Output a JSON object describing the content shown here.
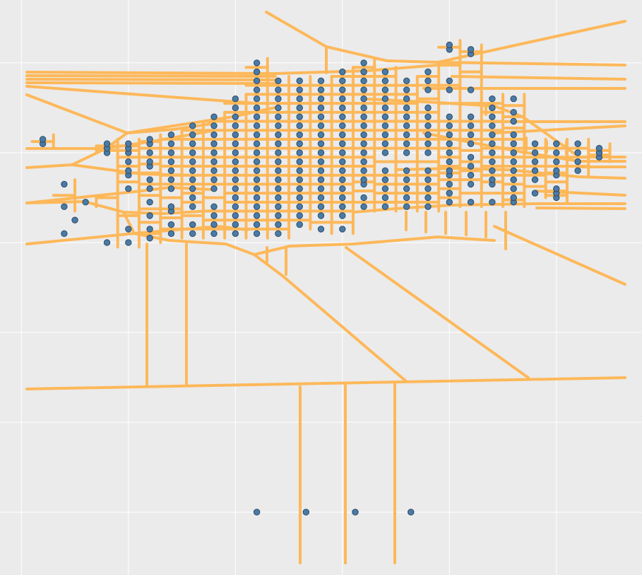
{
  "chart_data": {
    "type": "scatter",
    "title": "",
    "xlabel": "",
    "ylabel": "",
    "xlim": [
      -1,
      29
    ],
    "ylim": [
      -2,
      62
    ],
    "grid": true,
    "legend": "none",
    "colors": {
      "background": "#ebebeb",
      "grid": "#ffffff",
      "edges": "#fdb85a",
      "points": "#4a7ba6"
    },
    "x_gridlines": [
      0,
      5,
      10,
      15,
      20,
      25
    ],
    "y_gridlines": [
      5,
      15,
      25,
      35,
      45,
      55
    ],
    "point_columns": [
      {
        "x": 1,
        "y": [
          46,
          46.5
        ]
      },
      {
        "x": 2,
        "y": [
          39,
          41.5
        ]
      },
      {
        "x": 3,
        "y": [
          39.5
        ]
      },
      {
        "x": 4,
        "y": [
          35,
          45,
          45.5,
          46
        ]
      },
      {
        "x": 5,
        "y": [
          35,
          41,
          42.5,
          43,
          44,
          45,
          45.5,
          46
        ]
      },
      {
        "x": 6,
        "y": [
          35.5,
          36.5,
          38,
          39.5,
          41,
          42,
          43.5,
          44,
          45,
          46,
          46.5
        ]
      },
      {
        "x": 7,
        "y": [
          36,
          37,
          38.5,
          39,
          41,
          42,
          43,
          44,
          45,
          46,
          47
        ]
      },
      {
        "x": 8,
        "y": [
          36,
          37,
          39,
          40,
          41,
          42,
          43,
          44,
          45,
          46,
          47,
          48
        ]
      },
      {
        "x": 9,
        "y": [
          36,
          37,
          38,
          39,
          41,
          42,
          43,
          44,
          45,
          46,
          47,
          48,
          49
        ]
      },
      {
        "x": 10,
        "y": [
          36,
          37,
          38,
          39,
          40,
          41,
          42,
          43,
          44,
          45,
          46,
          47,
          48,
          49,
          50,
          51
        ]
      },
      {
        "x": 11,
        "y": [
          36,
          37,
          38,
          39,
          40,
          41,
          42,
          43,
          44,
          45,
          46,
          47,
          48,
          49,
          50,
          51,
          52,
          53,
          54,
          55
        ]
      },
      {
        "x": 12,
        "y": [
          36,
          37,
          38,
          39,
          40,
          41,
          42,
          43,
          44,
          45,
          46,
          47,
          48,
          49,
          50,
          51,
          52,
          53
        ]
      },
      {
        "x": 13,
        "y": [
          37,
          38,
          39,
          40,
          41,
          42,
          43,
          44,
          45,
          46,
          47,
          48,
          49,
          50,
          51,
          52,
          53
        ]
      },
      {
        "x": 14,
        "y": [
          36.5,
          38,
          39,
          40,
          41,
          42,
          43,
          44,
          45,
          46,
          47,
          48,
          49,
          50,
          51,
          52,
          53
        ]
      },
      {
        "x": 15,
        "y": [
          36.5,
          38,
          39,
          40,
          41,
          42,
          43,
          44,
          45,
          46,
          47,
          48,
          49,
          50,
          51,
          52,
          53,
          54
        ]
      },
      {
        "x": 16,
        "y": [
          39,
          40,
          41.5,
          42,
          43,
          44,
          45,
          46,
          47,
          48,
          49,
          50,
          51,
          52,
          53,
          54,
          55
        ]
      },
      {
        "x": 17,
        "y": [
          39,
          40,
          41,
          42,
          43,
          45,
          46,
          47,
          48,
          49,
          50,
          51,
          52,
          53,
          54
        ]
      },
      {
        "x": 18,
        "y": [
          39,
          40,
          41,
          42,
          43,
          45,
          46,
          47,
          48,
          49,
          50,
          51,
          52,
          53
        ]
      },
      {
        "x": 19,
        "y": [
          39,
          40,
          41,
          42,
          43,
          45,
          46,
          47,
          48,
          49,
          50,
          52,
          53,
          54
        ]
      },
      {
        "x": 20,
        "y": [
          39.5,
          40.5,
          41.5,
          42.5,
          43,
          44,
          45,
          46,
          47,
          48,
          49,
          52,
          53,
          56.5,
          57
        ]
      },
      {
        "x": 21,
        "y": [
          39.5,
          41.5,
          42.5,
          43.5,
          44.5,
          46,
          47,
          48,
          49,
          52,
          56,
          56.5
        ]
      },
      {
        "x": 22,
        "y": [
          39.5,
          41.5,
          42,
          43,
          44,
          45,
          46,
          47,
          48,
          49,
          50,
          51
        ]
      },
      {
        "x": 23,
        "y": [
          39.5,
          40,
          41,
          42,
          43,
          44,
          45,
          46,
          47,
          48.5,
          49.5,
          51
        ]
      },
      {
        "x": 24,
        "y": [
          40.5,
          42,
          43,
          44,
          45,
          46
        ]
      },
      {
        "x": 25,
        "y": [
          40,
          40.5,
          41,
          42.5,
          43,
          44,
          45,
          46
        ]
      },
      {
        "x": 26,
        "y": [
          43,
          44,
          45,
          46
        ]
      },
      {
        "x": 27,
        "y": [
          44.5,
          45,
          45.5
        ]
      }
    ],
    "extra_points": [
      {
        "x": 2,
        "y": 36
      },
      {
        "x": 2.5,
        "y": 37.5
      },
      {
        "x": 5,
        "y": 36.5
      },
      {
        "x": 11,
        "y": 5
      },
      {
        "x": 13.3,
        "y": 5
      },
      {
        "x": 15.6,
        "y": 5
      },
      {
        "x": 18.2,
        "y": 5
      }
    ]
  }
}
